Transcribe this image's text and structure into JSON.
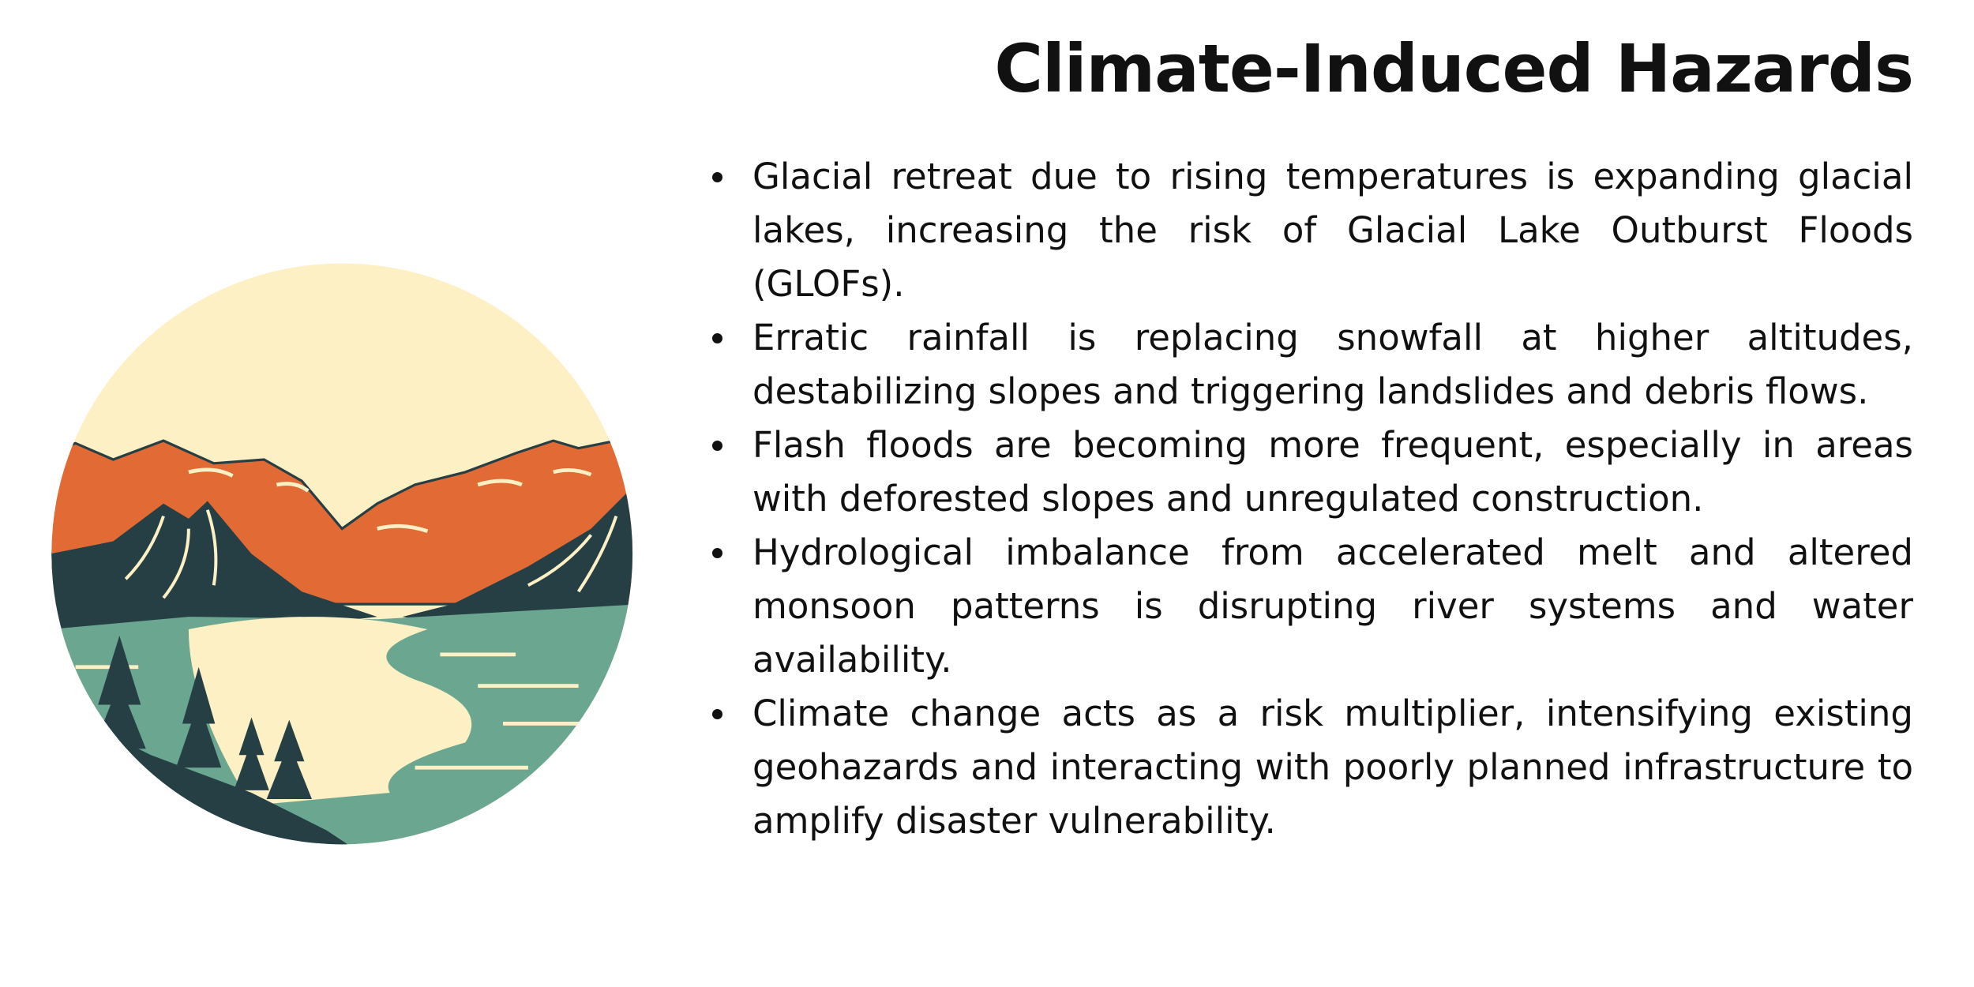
{
  "title": "Climate-Induced Hazards",
  "bullets": [
    "Glacial retreat due to rising temperatures is expanding glacial lakes, increasing the risk of Glacial Lake Outburst Floods (GLOFs).",
    "Erratic rainfall is replacing snowfall at higher altitudes, destabilizing slopes and triggering landslides and debris flows.",
    "Flash floods are becoming more frequent, especially in areas with deforested slopes and unregulated construction.",
    "Hydrological imbalance from accelerated melt and altered monsoon patterns is disrupting river systems and water availability.",
    "Climate change acts as a risk multiplier, intensifying existing geohazards and interacting with poorly planned infrastructure to amplify disaster vulnerability."
  ]
}
